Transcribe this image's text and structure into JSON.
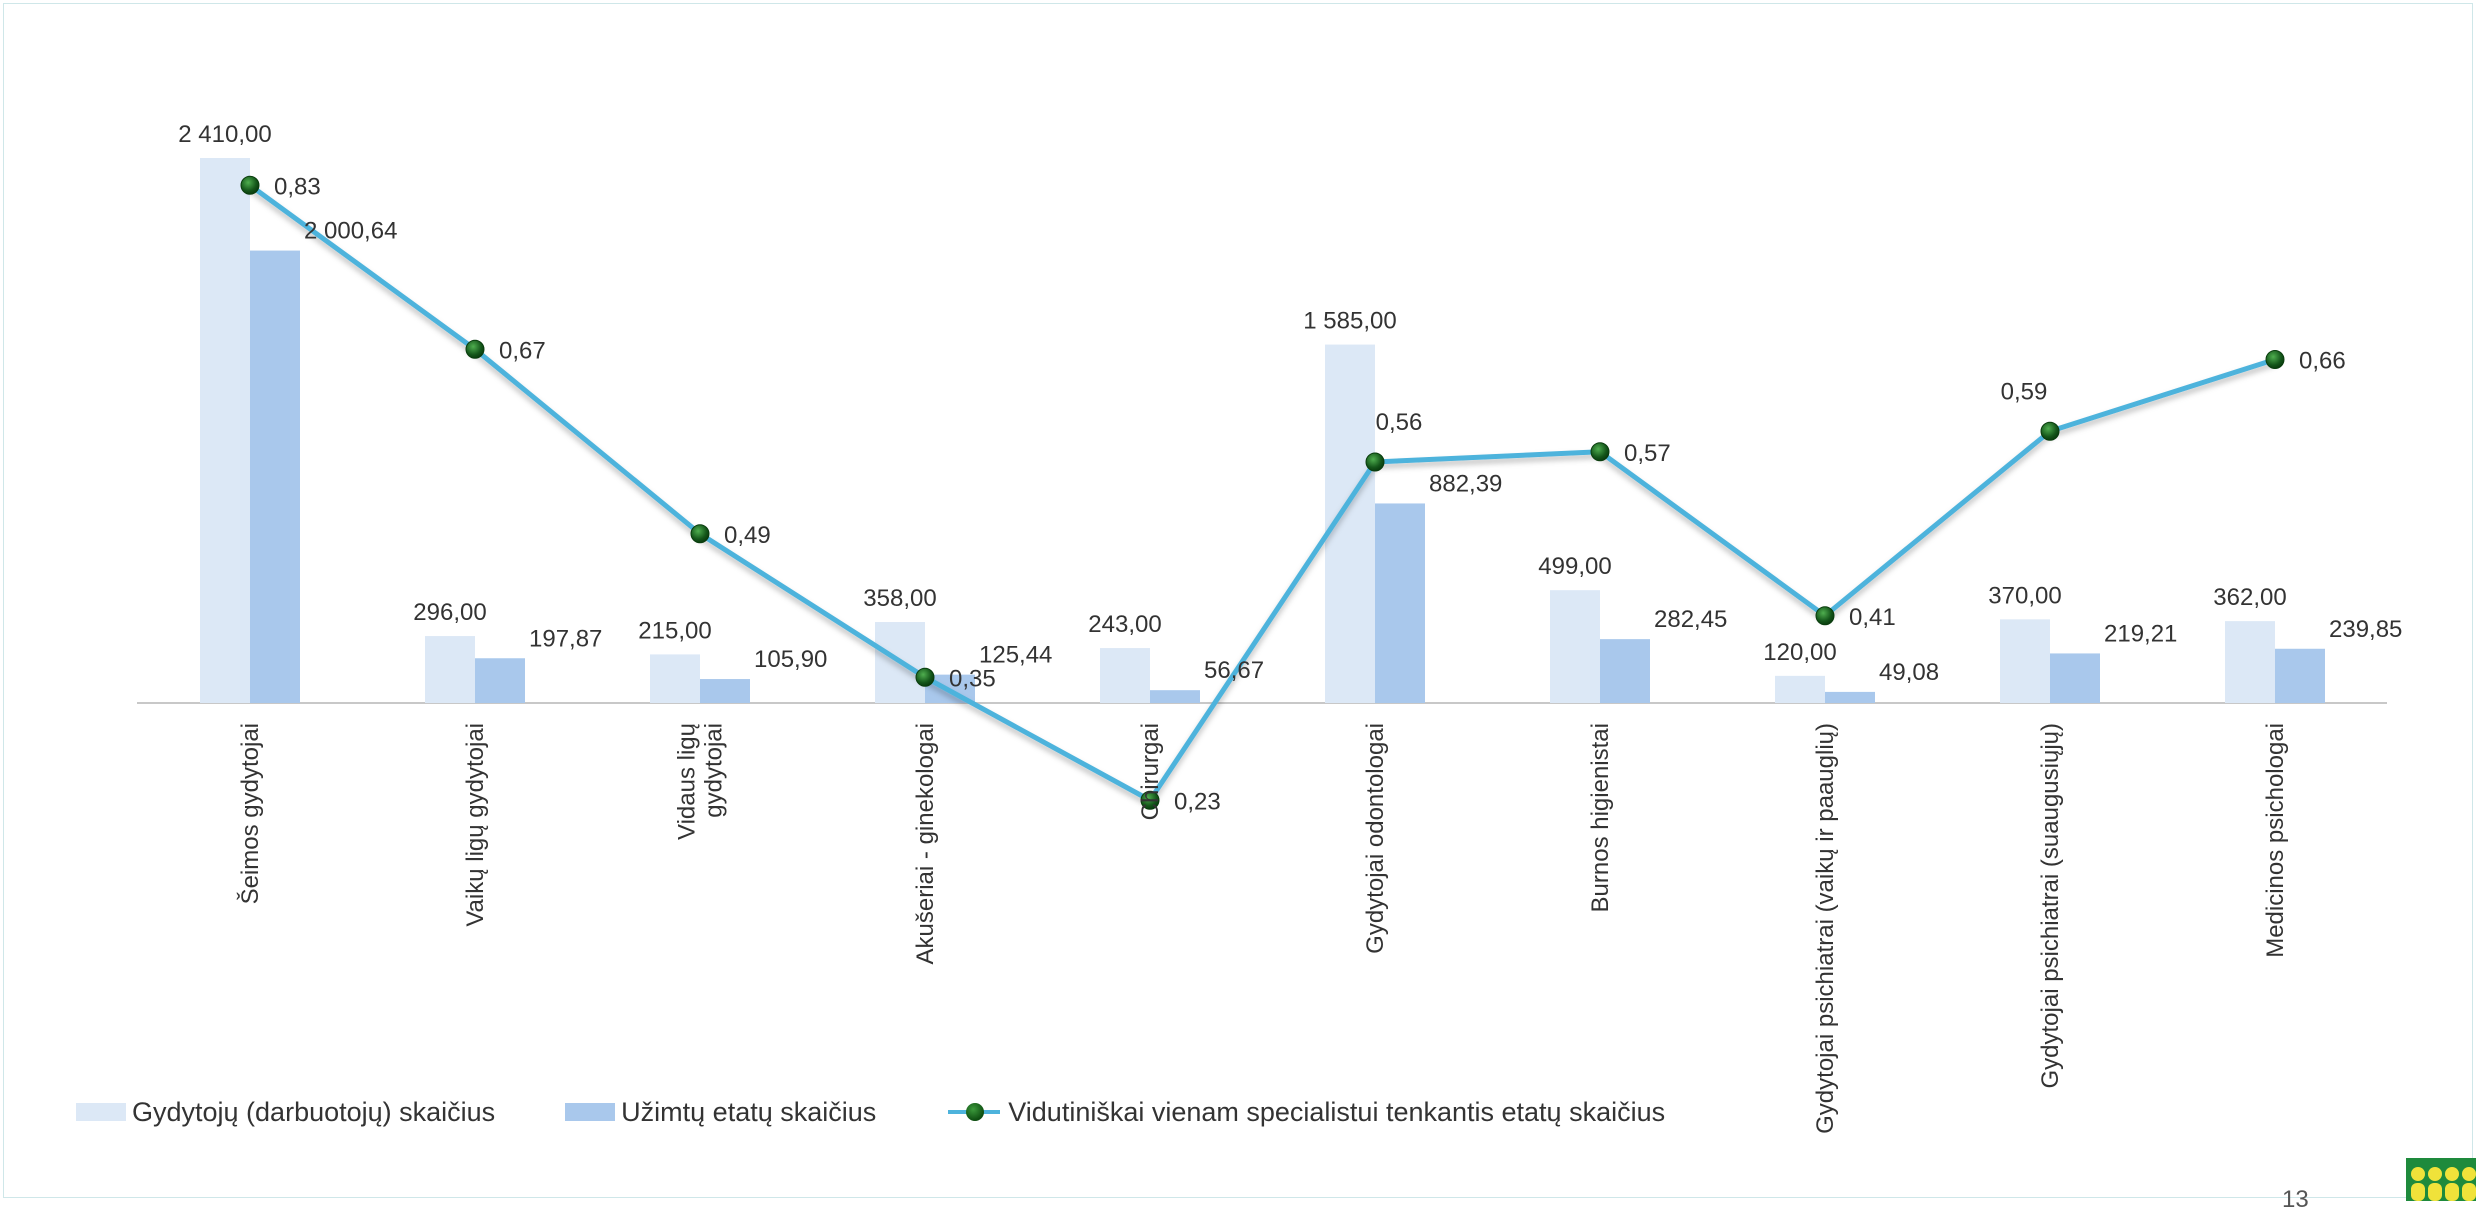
{
  "colors": {
    "doctors": "#dce8f6",
    "positions": "#a9c8ec",
    "line": "#4db3dc",
    "marker": "#1f6e21"
  },
  "chart_data": {
    "type": "bar",
    "categories": [
      "Šeimos gydytojai",
      "Vaikų ligų gydytojai",
      "Vidaus ligų gydytojai",
      "Akušeriai - ginekologai",
      "Chirurgai",
      "Gydytojai odontologai",
      "Burnos higienistai",
      "Gydytojai psichiatrai (vaikų ir paauglių)",
      "Gydytojai psichiatrai (suaugusiųjų)",
      "Medicinos psichologai"
    ],
    "series": [
      {
        "name": "Gydytojų (darbuotojų) skaičius",
        "type": "bar",
        "values": [
          2410,
          296,
          215,
          358,
          243,
          1585,
          499,
          120,
          370,
          362
        ],
        "labels": [
          "2 410,00",
          "296,00",
          "215,00",
          "358,00",
          "243,00",
          "1 585,00",
          "499,00",
          "120,00",
          "370,00",
          "362,00"
        ]
      },
      {
        "name": "Užimtų etatų skaičius",
        "type": "bar",
        "values": [
          2000.64,
          197.87,
          105.9,
          125.44,
          56.67,
          882.39,
          282.45,
          49.08,
          219.21,
          239.85
        ],
        "labels": [
          "2 000,64",
          "197,87",
          "105,90",
          "125,44",
          "56,67",
          "882,39",
          "282,45",
          "49,08",
          "219,21",
          "239,85"
        ]
      },
      {
        "name": "Vidutiniškai vienam specialistui tenkantis etatų skaičius",
        "type": "line",
        "axis": "secondary",
        "values": [
          0.83,
          0.67,
          0.49,
          0.35,
          0.23,
          0.56,
          0.57,
          0.41,
          0.59,
          0.66
        ],
        "labels": [
          "0,83",
          "0,67",
          "0,49",
          "0,35",
          "0,23",
          "0,56",
          "0,57",
          "0,41",
          "0,59",
          "0,66"
        ]
      }
    ],
    "legend_position": "bottom-left",
    "grid": false
  },
  "footer": {
    "page_number": "13"
  }
}
